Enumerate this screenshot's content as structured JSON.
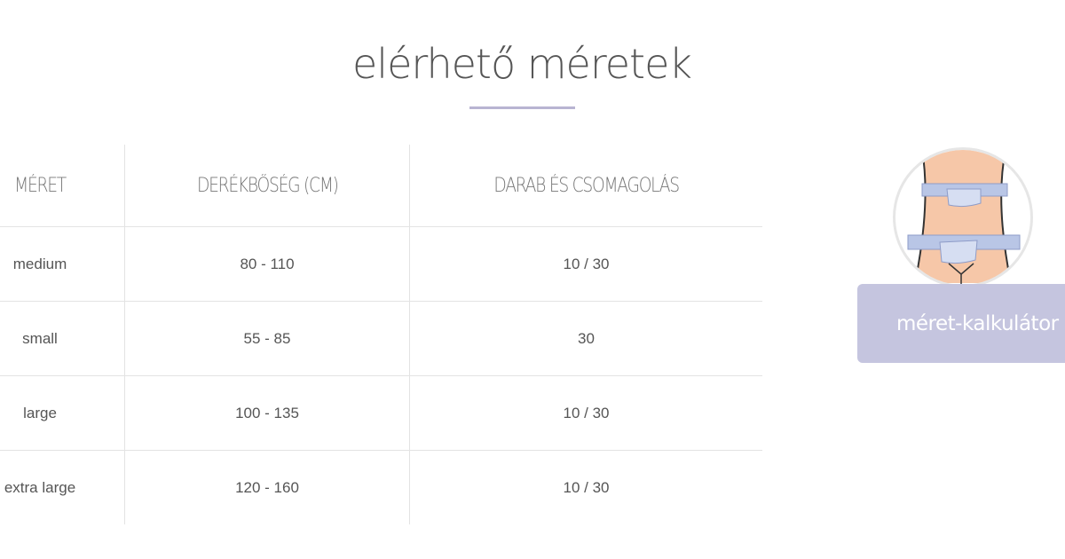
{
  "title": "elérhető méretek",
  "table": {
    "headers": [
      "MÉRET",
      "DERÉKBŐSÉG (CM)",
      "DARAB ÉS CSOMAGOLÁS"
    ],
    "rows": [
      [
        "medium",
        "80 - 110",
        "10 / 30"
      ],
      [
        "small",
        "55 - 85",
        "30"
      ],
      [
        "large",
        "100 - 135",
        "10 / 30"
      ],
      [
        "extra large",
        "120 - 160",
        "10 / 30"
      ]
    ]
  },
  "calculator": {
    "label": "méret-kalkulátor",
    "icon": "waist-measuring-tape-icon"
  },
  "colors": {
    "accent": "#c5c5df",
    "underline": "#b8b4d2",
    "skin": "#f6c7a8",
    "tape": "#b9c6e6"
  }
}
